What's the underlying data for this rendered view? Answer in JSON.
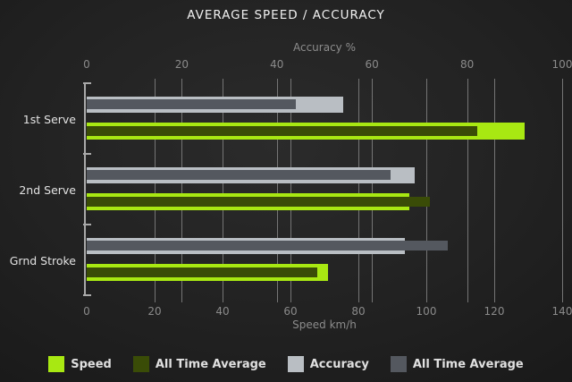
{
  "title": "AVERAGE SPEED / ACCURACY",
  "chart_data": {
    "type": "bar",
    "orientation": "horizontal",
    "title": "AVERAGE SPEED / ACCURACY",
    "categories": [
      "1st Serve",
      "2nd Serve",
      "Grnd Stroke"
    ],
    "top_axis": {
      "label": "Accuracy %",
      "range": [
        0,
        100
      ],
      "ticks": [
        0,
        20,
        40,
        60,
        80,
        100
      ]
    },
    "bottom_axis": {
      "label": "Speed km/h",
      "range": [
        0,
        140
      ],
      "ticks": [
        0,
        20,
        40,
        60,
        80,
        100,
        120,
        140
      ]
    },
    "series": [
      {
        "name": "Speed",
        "axis": "bottom",
        "color": "#a8e812",
        "values": [
          129,
          95,
          71
        ]
      },
      {
        "name": "All Time Average",
        "axis": "bottom",
        "color": "#3a4c07",
        "values": [
          115,
          101,
          68
        ]
      },
      {
        "name": "Accuracy",
        "axis": "top",
        "color": "#b9bec3",
        "values": [
          54,
          69,
          67
        ]
      },
      {
        "name": "All Time Average",
        "axis": "top",
        "color": "#54585f",
        "values": [
          44,
          64,
          76
        ]
      }
    ],
    "legend": [
      {
        "label": "Speed",
        "color": "#a8e812"
      },
      {
        "label": "All Time Average",
        "color": "#3a4c07"
      },
      {
        "label": "Accuracy",
        "color": "#b9bec3"
      },
      {
        "label": "All Time Average",
        "color": "#54585f"
      }
    ],
    "grid": true,
    "legend_position": "bottom"
  },
  "colors": {
    "background": "#222222",
    "gridline": "#757575",
    "axis_line": "#a9a9a9",
    "tick_text": "#8a8a8a",
    "title_text": "#f0f0f0",
    "category_text": "#e2e2e2",
    "legend_text": "#e0e0e0"
  }
}
